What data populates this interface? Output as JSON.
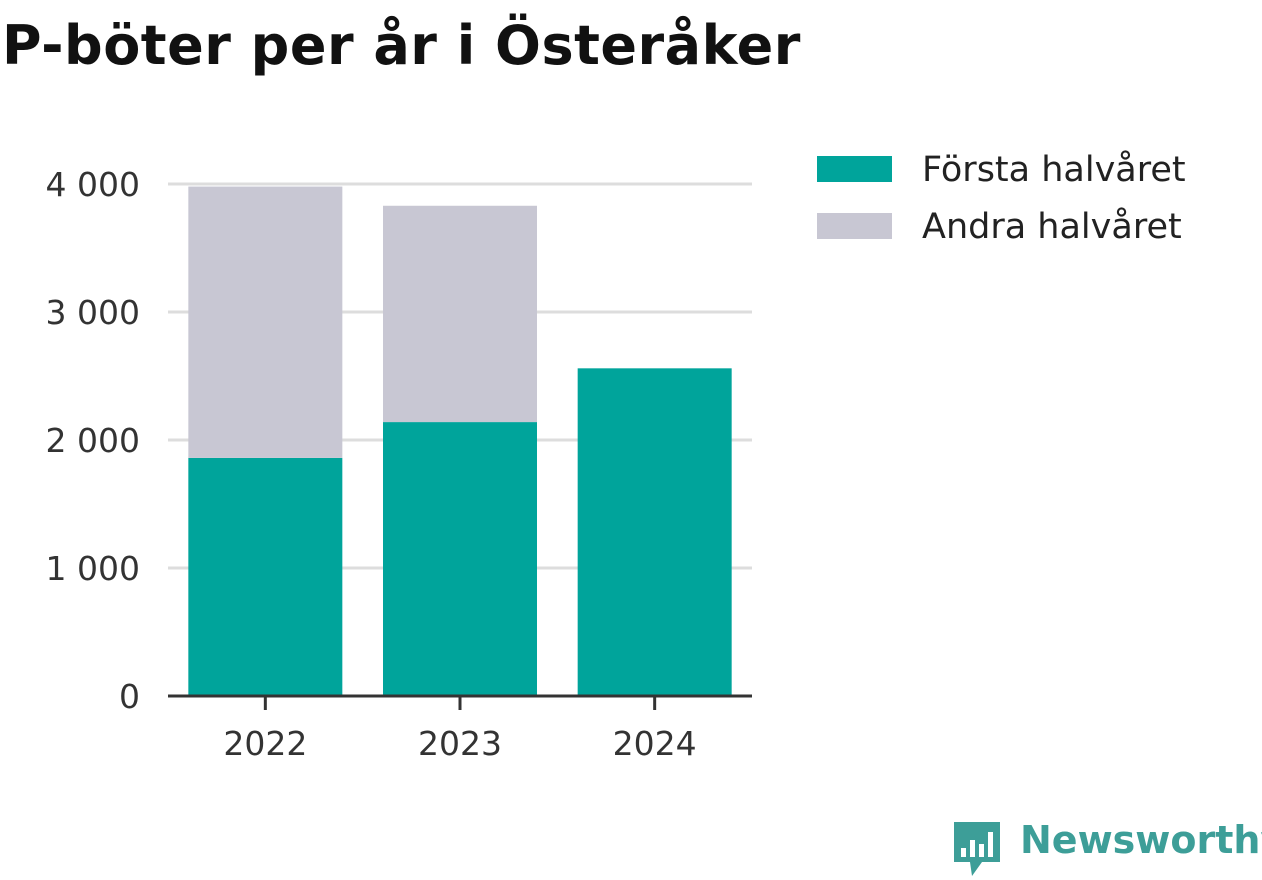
{
  "title": "P-böter per år i Österåker",
  "brand": "Newsworthy",
  "colors": {
    "first_half": "#00a49b",
    "second_half": "#c8c7d3",
    "grid": "#dddddd",
    "axis": "#333333",
    "brand": "#3d9e98"
  },
  "chart_data": {
    "type": "bar",
    "stacked": true,
    "categories": [
      "2022",
      "2023",
      "2024"
    ],
    "series": [
      {
        "name": "Första halvåret",
        "values": [
          1860,
          2140,
          2560
        ],
        "color": "#00a49b"
      },
      {
        "name": "Andra halvåret",
        "values": [
          2120,
          1690,
          0
        ],
        "color": "#c8c7d3"
      }
    ],
    "yticks": [
      0,
      1000,
      2000,
      3000,
      4000
    ],
    "ytick_labels": [
      "0",
      "1 000",
      "2 000",
      "3 000",
      "4 000"
    ],
    "ylim": [
      0,
      4000
    ],
    "grid": true,
    "legend_position": "right"
  }
}
